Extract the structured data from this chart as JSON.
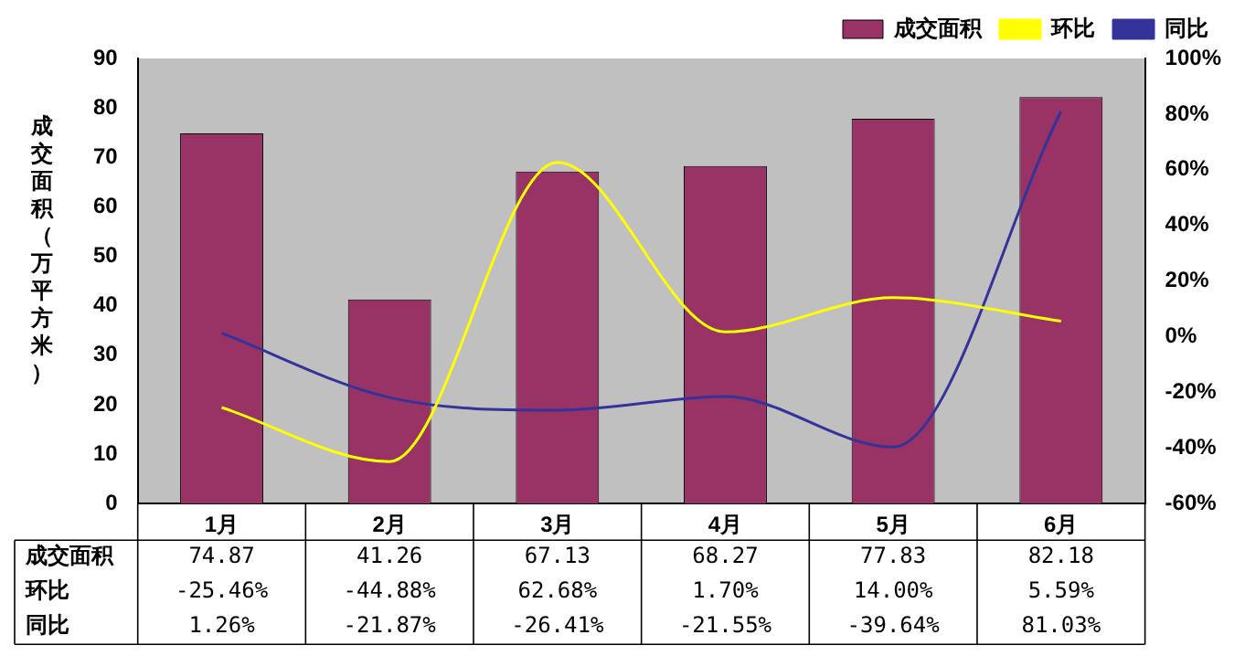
{
  "chart_data": {
    "type": "bar",
    "ylabel": "成交面积（万平方米）",
    "categories": [
      "1月",
      "2月",
      "3月",
      "4月",
      "5月",
      "6月"
    ],
    "series": [
      {
        "name": "成交面积",
        "color": "#993366",
        "values": [
          74.87,
          41.26,
          67.13,
          68.27,
          77.83,
          82.18
        ],
        "value_labels": [
          "74.87",
          "41.26",
          "67.13",
          "68.27",
          "77.83",
          "82.18"
        ]
      },
      {
        "name": "环比",
        "type": "line",
        "axis": "y2",
        "color": "#ffff00",
        "values": [
          -25.46,
          -44.88,
          62.68,
          1.7,
          14.0,
          5.59
        ],
        "value_labels": [
          "-25.46%",
          "-44.88%",
          "62.68%",
          "1.70%",
          "14.00%",
          "5.59%"
        ]
      },
      {
        "name": "同比",
        "type": "line",
        "axis": "y2",
        "color": "#333399",
        "values": [
          1.26,
          -21.87,
          -26.41,
          -21.55,
          -39.64,
          81.03
        ],
        "value_labels": [
          "1.26%",
          "-21.87%",
          "-26.41%",
          "-21.55%",
          "-39.64%",
          "81.03%"
        ]
      }
    ],
    "ylim": [
      0,
      90
    ],
    "yticks": [
      0,
      10,
      20,
      30,
      40,
      50,
      60,
      70,
      80,
      90
    ],
    "y2lim": [
      -60,
      100
    ],
    "y2ticks": [
      {
        "value": -60,
        "label": "-60%"
      },
      {
        "value": -40,
        "label": "-40%"
      },
      {
        "value": -20,
        "label": "-20%"
      },
      {
        "value": 0,
        "label": "0%"
      },
      {
        "value": 20,
        "label": "20%"
      },
      {
        "value": 40,
        "label": "40%"
      },
      {
        "value": 60,
        "label": "60%"
      },
      {
        "value": 80,
        "label": "80%"
      },
      {
        "value": 100,
        "label": "100%"
      }
    ],
    "grid": false,
    "legend": "top right",
    "marker": "none",
    "line_style": "solid"
  }
}
